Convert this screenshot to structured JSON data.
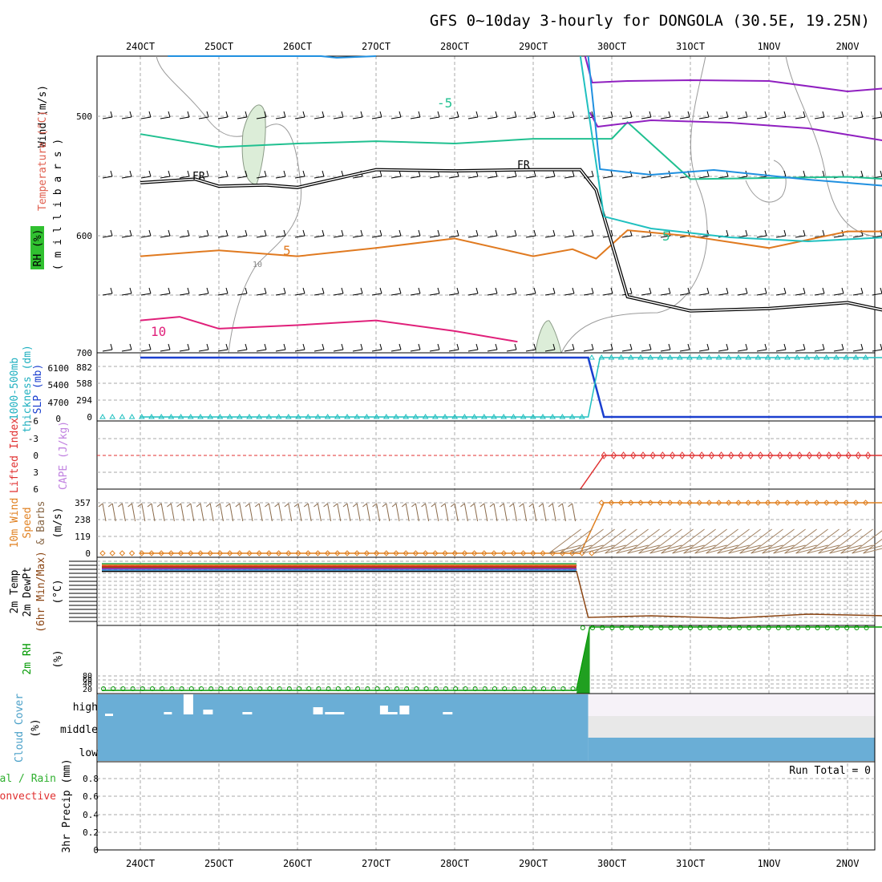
{
  "title": "GFS 0~10day 3-hourly for DONGOLA (30.5E, 19.25N)",
  "x_ticks": [
    "24OCT",
    "25OCT",
    "26OCT",
    "27OCT",
    "28OCT",
    "29OCT",
    "30OCT",
    "31OCT",
    "1NOV",
    "2NOV"
  ],
  "colors": {
    "grid": "#a8a8a8",
    "slp": "#1a3fcf",
    "thick": "#20c0c0",
    "cloud": "#6aaed6",
    "cape": "#c080e0",
    "li": "#e03030",
    "wind": "#e08020",
    "rh": "#009900",
    "temp_green": "#20c090",
    "temp_orange": "#e07a20",
    "temp_magenta": "#e0207a",
    "temp_purple": "#9020c0",
    "temp_blue": "#2090e0"
  },
  "panels": {
    "upper_air": {
      "ylabels": [
        "Wind (m/s)",
        "Temperature (°C)",
        "RH (%)"
      ],
      "axis_label": "( m i l l i b a r s )",
      "y_ticks": [
        "500",
        "600",
        "700"
      ],
      "contour_labels": [
        "FR",
        "FR",
        "-5",
        "5",
        "5",
        "10",
        "10"
      ]
    },
    "thickness_slp": {
      "ylabels": [
        "1000-500mb",
        "thickness (dm)",
        "SLP (mb)"
      ],
      "y_ticks_left": [
        "6100",
        "5400",
        "4700",
        "0"
      ],
      "y_ticks_right": [
        "882",
        "588",
        "294",
        "0"
      ]
    },
    "cape_li": {
      "ylabels": [
        "Lifted Index",
        "CAPE (J/kg)"
      ],
      "y_ticks": [
        "-6",
        "-3",
        "0",
        "3",
        "6"
      ]
    },
    "wind10m": {
      "ylabels": [
        "10m Wind",
        "Speed",
        "& Barbs",
        "(m/s)"
      ],
      "y_ticks": [
        "357",
        "238",
        "119",
        "0"
      ]
    },
    "temp2m": {
      "ylabels": [
        "2m Temp",
        "2m DewPt",
        "(6hr Min/Max)",
        "(°C)"
      ]
    },
    "rh2m": {
      "ylabels": [
        "2m RH",
        "(%)"
      ],
      "y_ticks": [
        "80",
        "60",
        "40",
        "20"
      ]
    },
    "cloud": {
      "ylabels": [
        "Cloud Cover",
        "(%)"
      ],
      "levels": [
        "high",
        "middle",
        "low"
      ]
    },
    "precip": {
      "ylabels": [
        "Total / Rain",
        "Convective",
        "3hr Precip (mm)"
      ],
      "y_ticks": [
        "0.8",
        "0.6",
        "0.4",
        "0.2",
        "0"
      ],
      "run_total": "Run Total = 0"
    }
  },
  "chart_data": [
    {
      "type": "line",
      "title": "GFS 0~10day 3-hourly for DONGOLA (30.5E, 19.25N)",
      "panel": "upper_air",
      "y_unit": "millibars",
      "ylim": [
        700,
        450
      ],
      "series": [
        {
          "name": "-5 isotherm",
          "x": [
            0,
            1,
            2,
            3,
            4,
            5,
            6,
            6.2,
            7,
            8,
            9,
            9.5
          ],
          "y": [
            515,
            526,
            523,
            521,
            523,
            519,
            519,
            505,
            553,
            552,
            551,
            553
          ]
        },
        {
          "name": "5 isotherm",
          "x": [
            0,
            1,
            2,
            3,
            4,
            5,
            5.5,
            5.8,
            6.2,
            7,
            8,
            9,
            9.5
          ],
          "y": [
            618,
            613,
            618,
            611,
            603,
            618,
            612,
            620,
            596,
            601,
            611,
            597,
            597
          ]
        },
        {
          "name": "10 isotherm",
          "x": [
            0,
            0.5,
            1,
            2,
            3,
            4,
            4.8
          ],
          "y": [
            672,
            669,
            679,
            676,
            672,
            681,
            690
          ]
        },
        {
          "name": "FR",
          "x": [
            0,
            0.7,
            1,
            1.6,
            2,
            3,
            4,
            5,
            5.6,
            5.8,
            6.2,
            7,
            8,
            9,
            9.5
          ],
          "y": [
            556,
            553,
            559,
            558,
            560,
            545,
            546,
            545,
            545,
            562,
            652,
            664,
            662,
            657,
            664
          ]
        }
      ]
    },
    {
      "type": "line",
      "panel": "thickness_slp",
      "series": [
        {
          "name": "SLP (mb)",
          "x": [
            0,
            5.7,
            5.9,
            9.5
          ],
          "y": [
            882,
            882,
            0,
            0
          ]
        },
        {
          "name": "1000-500mb thickness (dm)",
          "x": [
            0,
            5.7,
            5.85,
            9.5
          ],
          "y": [
            0,
            0,
            6100,
            6100
          ]
        }
      ]
    },
    {
      "type": "line",
      "panel": "cape_li",
      "series": [
        {
          "name": "Lifted Index",
          "x": [
            5.9,
            9.5
          ],
          "y": [
            0,
            0
          ]
        }
      ]
    },
    {
      "type": "line",
      "panel": "wind10m",
      "series": [
        {
          "name": "10m Wind Speed",
          "x": [
            0,
            5.6,
            5.9,
            6.5,
            7,
            8,
            9,
            9.5
          ],
          "y": [
            0,
            0,
            357,
            360,
            355,
            357,
            357,
            357
          ]
        }
      ]
    },
    {
      "type": "area",
      "panel": "cloud",
      "series": [
        {
          "name": "low",
          "x": [
            0,
            5.7,
            5.7,
            9.5
          ],
          "y": [
            100,
            100,
            100,
            100
          ]
        },
        {
          "name": "middle",
          "x": [
            0,
            5.7,
            5.7,
            9.5
          ],
          "y": [
            100,
            100,
            0,
            0
          ]
        }
      ]
    }
  ]
}
